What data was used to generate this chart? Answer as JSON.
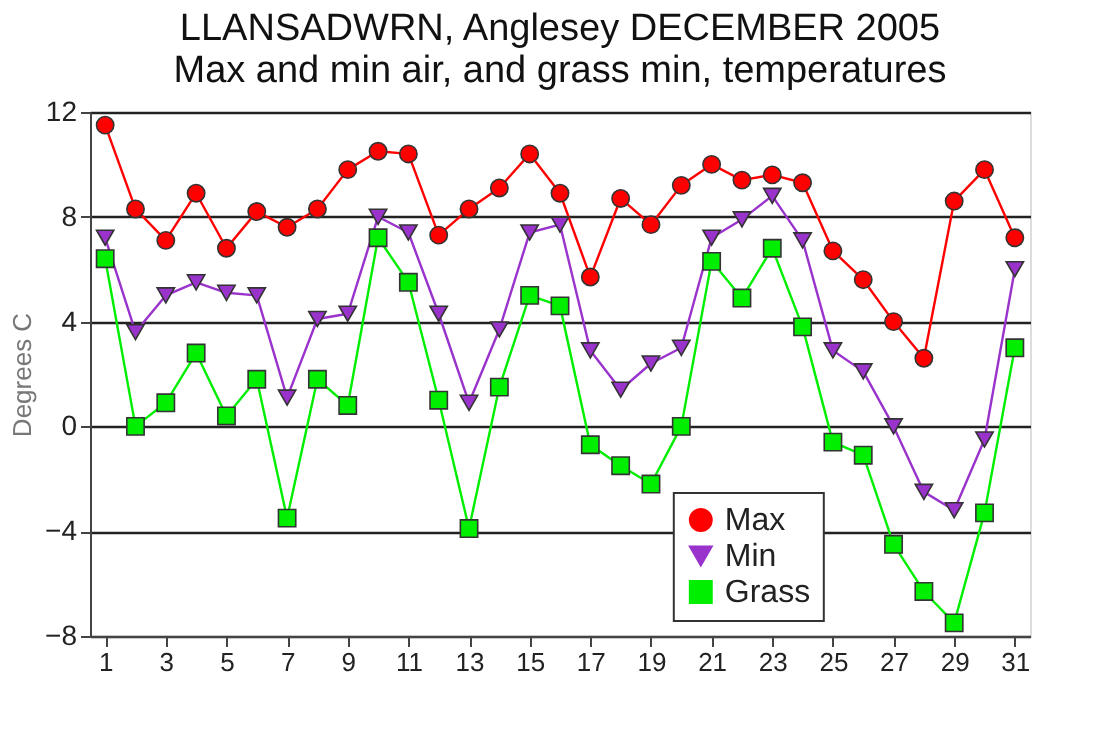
{
  "chart_data": {
    "type": "line",
    "title": [
      "LLANSADWRN, Anglesey DECEMBER 2005",
      "Max and min air, and grass min, temperatures"
    ],
    "ylabel": "Degrees C",
    "x": [
      1,
      2,
      3,
      4,
      5,
      6,
      7,
      8,
      9,
      10,
      11,
      12,
      13,
      14,
      15,
      16,
      17,
      18,
      19,
      20,
      21,
      22,
      23,
      24,
      25,
      26,
      27,
      28,
      29,
      30,
      31
    ],
    "series": [
      {
        "name": "Max",
        "color": "#ff0000",
        "marker": "circle",
        "values": [
          11.5,
          8.3,
          7.1,
          8.9,
          6.8,
          8.2,
          7.6,
          8.3,
          9.8,
          10.5,
          10.4,
          7.3,
          8.3,
          9.1,
          10.4,
          8.9,
          5.7,
          8.7,
          7.7,
          9.2,
          10.0,
          9.4,
          9.6,
          9.3,
          6.7,
          5.6,
          4.0,
          2.6,
          8.6,
          9.8,
          7.2
        ]
      },
      {
        "name": "Min",
        "color": "#9933cc",
        "marker": "triangle",
        "values": [
          7.2,
          3.6,
          5.0,
          5.5,
          5.1,
          5.0,
          1.1,
          4.1,
          4.3,
          8.0,
          7.4,
          4.3,
          0.9,
          3.7,
          7.4,
          7.7,
          2.9,
          1.4,
          2.4,
          3.0,
          7.2,
          7.9,
          8.8,
          7.1,
          2.9,
          2.1,
          0.0,
          -2.5,
          -3.2,
          -0.5,
          6.0
        ]
      },
      {
        "name": "Grass",
        "color": "#00ee00",
        "marker": "square",
        "values": [
          6.4,
          0.0,
          0.9,
          2.8,
          0.4,
          1.8,
          -3.5,
          1.8,
          0.8,
          7.2,
          5.5,
          1.0,
          -3.9,
          1.5,
          5.0,
          4.6,
          -0.7,
          -1.5,
          -2.2,
          0.0,
          6.3,
          4.9,
          6.8,
          3.8,
          -0.6,
          -1.1,
          -4.5,
          -6.3,
          -7.5,
          -3.3,
          3.0
        ]
      }
    ],
    "xlim": [
      0.5,
      31.5
    ],
    "xticks": [
      1,
      3,
      5,
      7,
      9,
      11,
      13,
      15,
      17,
      19,
      21,
      23,
      25,
      27,
      29,
      31
    ],
    "ylim": [
      -8,
      12
    ],
    "yticks": [
      -8,
      -4,
      0,
      4,
      8,
      12
    ],
    "grid": "y",
    "legend": "bottom",
    "line_style": "solid"
  }
}
